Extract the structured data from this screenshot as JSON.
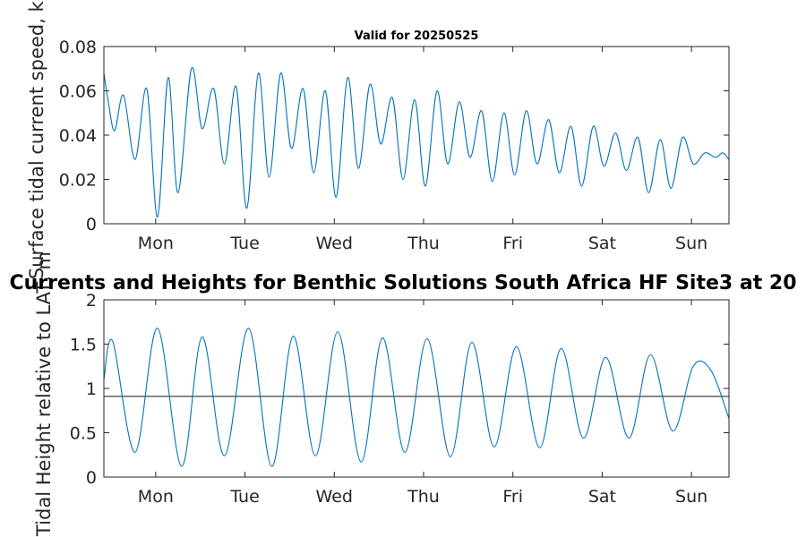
{
  "chart_data": [
    {
      "type": "line",
      "title": "Valid for 20250525",
      "ylabel": "Surface tidal current speed, kn",
      "xlabel": "",
      "categories": [
        "Mon",
        "Tue",
        "Wed",
        "Thu",
        "Fri",
        "Sat",
        "Sun"
      ],
      "yticks": [
        "0",
        "0.02",
        "0.04",
        "0.06",
        "0.08"
      ],
      "ylim": [
        0,
        0.08
      ],
      "xlim": [
        0,
        7
      ],
      "grid": false,
      "color": "#0072bd",
      "series": [
        {
          "x": [
            0,
            0.05,
            0.12,
            0.22,
            0.35,
            0.48,
            0.6,
            0.72,
            0.83,
            0.98,
            1.1,
            1.23,
            1.35,
            1.48,
            1.6,
            1.73,
            1.85,
            1.98,
            2.1,
            2.23,
            2.35,
            2.48,
            2.6,
            2.73,
            2.85,
            2.98,
            3.1,
            3.23,
            3.35,
            3.48,
            3.6,
            3.73,
            3.85,
            3.98,
            4.1,
            4.23,
            4.35,
            4.48,
            4.6,
            4.73,
            4.85,
            4.98,
            5.1,
            5.23,
            5.35,
            5.48,
            5.6,
            5.73,
            5.85,
            5.98,
            6.1,
            6.23,
            6.35,
            6.48,
            6.6,
            6.73,
            6.85,
            6.93,
            7.0
          ],
          "y": [
            0.068,
            0.055,
            0.042,
            0.058,
            0.029,
            0.061,
            0.003,
            0.066,
            0.014,
            0.07,
            0.043,
            0.061,
            0.027,
            0.062,
            0.007,
            0.068,
            0.021,
            0.068,
            0.034,
            0.061,
            0.023,
            0.06,
            0.012,
            0.066,
            0.025,
            0.063,
            0.036,
            0.057,
            0.02,
            0.056,
            0.017,
            0.06,
            0.027,
            0.055,
            0.03,
            0.051,
            0.019,
            0.05,
            0.022,
            0.051,
            0.027,
            0.047,
            0.023,
            0.044,
            0.017,
            0.044,
            0.026,
            0.041,
            0.024,
            0.039,
            0.014,
            0.038,
            0.016,
            0.039,
            0.027,
            0.032,
            0.03,
            0.032,
            0.029
          ]
        }
      ]
    },
    {
      "type": "line",
      "title": "Currents and Heights for Benthic Solutions South Africa HF Site3 at 20",
      "ylabel": "Tidal Height relative to LAT, m",
      "xlabel": "",
      "categories": [
        "Mon",
        "Tue",
        "Wed",
        "Thu",
        "Fri",
        "Sat",
        "Sun"
      ],
      "yticks": [
        "0",
        "0.5",
        "1",
        "1.5",
        "2"
      ],
      "ylim": [
        0,
        2
      ],
      "xlim": [
        0,
        7
      ],
      "grid": false,
      "color": "#0072bd",
      "reference_line": 0.91,
      "series": [
        {
          "x": [
            0,
            0.1,
            0.35,
            0.6,
            0.87,
            1.1,
            1.35,
            1.62,
            1.88,
            2.12,
            2.37,
            2.62,
            2.88,
            3.12,
            3.37,
            3.62,
            3.88,
            4.12,
            4.37,
            4.62,
            4.88,
            5.12,
            5.37,
            5.62,
            5.88,
            6.12,
            6.37,
            6.6,
            6.8,
            7.0
          ],
          "y": [
            1.1,
            1.53,
            0.28,
            1.68,
            0.12,
            1.58,
            0.24,
            1.68,
            0.12,
            1.59,
            0.24,
            1.64,
            0.17,
            1.57,
            0.28,
            1.56,
            0.23,
            1.52,
            0.34,
            1.47,
            0.33,
            1.45,
            0.44,
            1.35,
            0.44,
            1.38,
            0.52,
            1.25,
            1.2,
            0.66
          ]
        }
      ]
    }
  ]
}
